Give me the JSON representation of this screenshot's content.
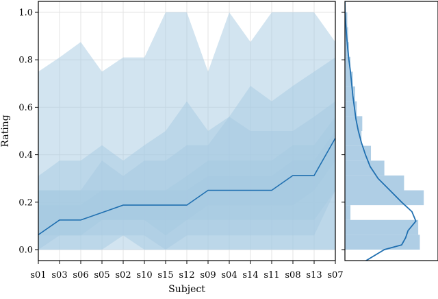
{
  "chart_data": [
    {
      "type": "line",
      "xlabel": "Subject",
      "ylabel": "Rating",
      "ylim": [
        0.0,
        1.0
      ],
      "y_ticks": [
        "0.0",
        "0.2",
        "0.4",
        "0.6",
        "0.8",
        "1.0"
      ],
      "grid": true,
      "categories": [
        "s01",
        "s03",
        "s06",
        "s05",
        "s02",
        "s10",
        "s15",
        "s12",
        "s09",
        "s04",
        "s14",
        "s11",
        "s08",
        "s13",
        "s07"
      ],
      "median": [
        0.0625,
        0.125,
        0.125,
        0.156,
        0.1875,
        0.1875,
        0.1875,
        0.1875,
        0.25,
        0.25,
        0.25,
        0.25,
        0.3125,
        0.3125,
        0.47
      ],
      "quantile_bands": [
        {
          "level": "outer",
          "lower": [
            0.0,
            0.0,
            0.0,
            0.0,
            0.0,
            0.0,
            0.0,
            0.0,
            0.0,
            0.0,
            0.0,
            0.0,
            0.0,
            0.0,
            0.0
          ],
          "upper": [
            0.75,
            0.81,
            0.875,
            0.75,
            0.81,
            0.81,
            1.0,
            1.0,
            0.75,
            1.0,
            0.875,
            1.0,
            1.0,
            1.0,
            0.875
          ]
        },
        {
          "level": "mid-outer",
          "lower": [
            0.0,
            0.0,
            0.0,
            0.0,
            0.06,
            0.0,
            0.0,
            0.0,
            0.0,
            0.0,
            0.0,
            0.0,
            0.0,
            0.0,
            0.0
          ],
          "upper": [
            0.31,
            0.375,
            0.375,
            0.44,
            0.375,
            0.44,
            0.5,
            0.625,
            0.5,
            0.56,
            0.69,
            0.625,
            0.69,
            0.75,
            0.81
          ]
        },
        {
          "level": "mid",
          "lower": [
            0.0,
            0.06,
            0.06,
            0.06,
            0.06,
            0.06,
            0.0,
            0.06,
            0.06,
            0.06,
            0.06,
            0.06,
            0.06,
            0.06,
            0.25
          ],
          "upper": [
            0.25,
            0.25,
            0.25,
            0.375,
            0.31,
            0.375,
            0.375,
            0.44,
            0.44,
            0.56,
            0.5,
            0.5,
            0.5,
            0.56,
            0.625
          ]
        },
        {
          "level": "inner",
          "lower": [
            0.06,
            0.06,
            0.06,
            0.125,
            0.125,
            0.125,
            0.06,
            0.125,
            0.125,
            0.125,
            0.125,
            0.125,
            0.125,
            0.125,
            0.25
          ],
          "upper": [
            0.25,
            0.25,
            0.25,
            0.25,
            0.25,
            0.25,
            0.25,
            0.31,
            0.375,
            0.375,
            0.375,
            0.375,
            0.44,
            0.44,
            0.56
          ]
        },
        {
          "level": "core",
          "lower": [
            0.06,
            0.125,
            0.125,
            0.125,
            0.125,
            0.125,
            0.125,
            0.125,
            0.1875,
            0.1875,
            0.1875,
            0.1875,
            0.1875,
            0.25,
            0.375
          ],
          "upper": [
            0.1875,
            0.1875,
            0.1875,
            0.25,
            0.25,
            0.25,
            0.25,
            0.25,
            0.31,
            0.31,
            0.31,
            0.31,
            0.375,
            0.375,
            0.5
          ]
        }
      ],
      "colors": {
        "line": "#1f6fb0",
        "band": "#a6c9e2",
        "grid": "#e3e3e3"
      }
    },
    {
      "type": "bar",
      "orientation": "horizontal",
      "description_of": "marginal distribution of Rating",
      "ylim": [
        0.0,
        1.0
      ],
      "bins": [
        {
          "low": 0.0,
          "high": 0.0625,
          "value": 0.95
        },
        {
          "low": 0.0625,
          "high": 0.125,
          "value": 0.93
        },
        {
          "low": 0.125,
          "high": 0.1875,
          "value": 0.07
        },
        {
          "low": 0.1875,
          "high": 0.25,
          "value": 1.0
        },
        {
          "low": 0.25,
          "high": 0.3125,
          "value": 0.75
        },
        {
          "low": 0.3125,
          "high": 0.375,
          "value": 0.5
        },
        {
          "low": 0.375,
          "high": 0.4375,
          "value": 0.33
        },
        {
          "low": 0.4375,
          "high": 0.5,
          "value": 0.21
        },
        {
          "low": 0.5,
          "high": 0.5625,
          "value": 0.22
        },
        {
          "low": 0.5625,
          "high": 0.625,
          "value": 0.15
        },
        {
          "low": 0.625,
          "high": 0.6875,
          "value": 0.13
        },
        {
          "low": 0.6875,
          "high": 0.75,
          "value": 0.1
        },
        {
          "low": 0.75,
          "high": 0.8125,
          "value": 0.07
        },
        {
          "low": 0.8125,
          "high": 0.875,
          "value": 0.05
        },
        {
          "low": 0.875,
          "high": 0.9375,
          "value": 0.04
        },
        {
          "low": 0.9375,
          "high": 1.0,
          "value": 0.03
        }
      ],
      "kde": [
        {
          "y": -0.05,
          "v": 0.25
        },
        {
          "y": 0.0,
          "v": 0.5
        },
        {
          "y": 0.02,
          "v": 0.72
        },
        {
          "y": 0.05,
          "v": 0.77
        },
        {
          "y": 0.08,
          "v": 0.8
        },
        {
          "y": 0.12,
          "v": 0.9
        },
        {
          "y": 0.16,
          "v": 0.85
        },
        {
          "y": 0.2,
          "v": 0.72
        },
        {
          "y": 0.25,
          "v": 0.57
        },
        {
          "y": 0.3,
          "v": 0.42
        },
        {
          "y": 0.35,
          "v": 0.32
        },
        {
          "y": 0.4,
          "v": 0.26
        },
        {
          "y": 0.45,
          "v": 0.21
        },
        {
          "y": 0.5,
          "v": 0.17
        },
        {
          "y": 0.55,
          "v": 0.14
        },
        {
          "y": 0.6,
          "v": 0.12
        },
        {
          "y": 0.65,
          "v": 0.1
        },
        {
          "y": 0.7,
          "v": 0.085
        },
        {
          "y": 0.75,
          "v": 0.07
        },
        {
          "y": 0.8,
          "v": 0.05
        },
        {
          "y": 0.85,
          "v": 0.035
        },
        {
          "y": 0.9,
          "v": 0.022
        },
        {
          "y": 0.95,
          "v": 0.01
        },
        {
          "y": 1.0,
          "v": 0.003
        },
        {
          "y": 1.05,
          "v": 0.0
        }
      ],
      "colors": {
        "line": "#1f6fb0",
        "bar": "#a6c9e2"
      }
    }
  ]
}
